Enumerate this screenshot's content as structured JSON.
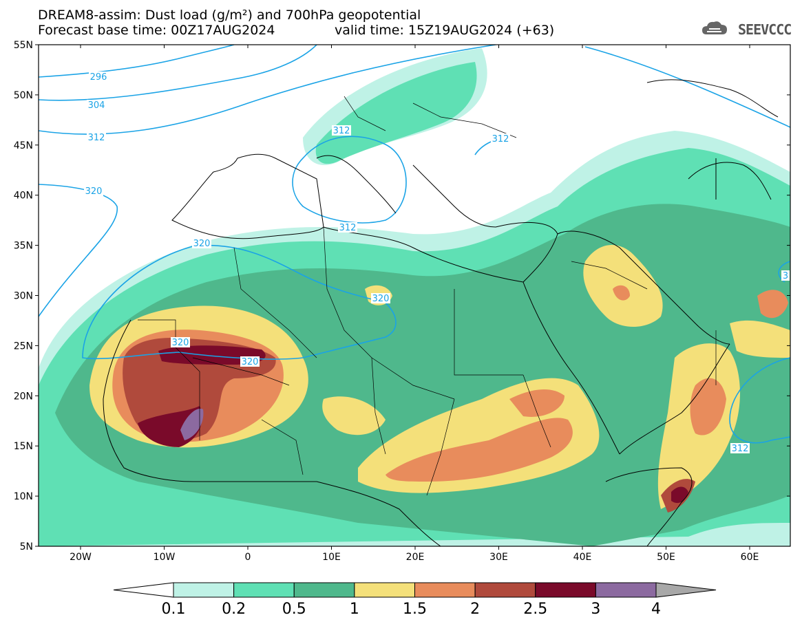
{
  "title": {
    "line1": "DREAM8-assim: Dust load (g/m²) and 700hPa geopotential",
    "line2": "Forecast base time: 00Z17AUG2024",
    "valid": "valid time: 15Z19AUG2024 (+63)"
  },
  "logo": {
    "text": "SEEVCCC",
    "icon": "cloud-logo-icon"
  },
  "axes": {
    "lon_ticks": [
      "20W",
      "10W",
      "0",
      "10E",
      "20E",
      "30E",
      "40E",
      "50E",
      "60E"
    ],
    "lat_ticks": [
      "55N",
      "50N",
      "45N",
      "40N",
      "35N",
      "30N",
      "25N",
      "20N",
      "15N",
      "10N",
      "5N"
    ]
  },
  "contour_labels": [
    "296",
    "304",
    "312",
    "320",
    "312",
    "312",
    "312",
    "320",
    "320",
    "320",
    "320",
    "312",
    "3"
  ],
  "colorbar": {
    "labels": [
      "0.1",
      "0.2",
      "0.5",
      "1",
      "1.5",
      "2",
      "2.5",
      "3",
      "4"
    ],
    "colors": [
      "#bff2e6",
      "#5fe0b4",
      "#4fb88c",
      "#f4e07a",
      "#e88c5c",
      "#b04a3c",
      "#7a0a2a",
      "#8c6aa0"
    ],
    "under_color": "#ffffff",
    "over_color": "#a8a8a8"
  }
}
